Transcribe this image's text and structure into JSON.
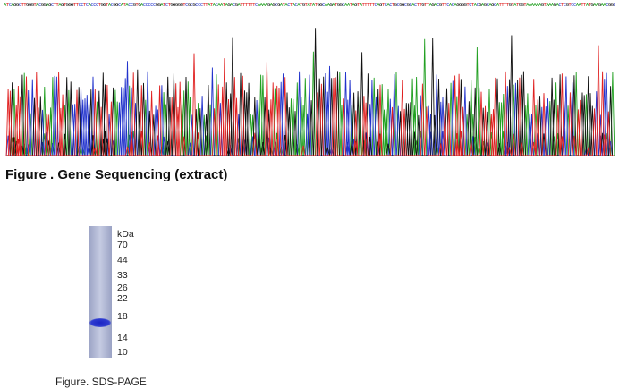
{
  "sequencing": {
    "caption": "Figure . Gene Sequencing (extract)",
    "base_colors": {
      "A": "#22a022",
      "C": "#2233cc",
      "G": "#111111",
      "T": "#e02020"
    }
  },
  "sds_page": {
    "unit": "kDa",
    "markers": [
      "70",
      "44",
      "33",
      "26",
      "22",
      "18",
      "14",
      "10"
    ],
    "caption": "Figure. SDS-PAGE",
    "band_color": "#2a36c8",
    "lane_color": "#b8bfd8"
  }
}
